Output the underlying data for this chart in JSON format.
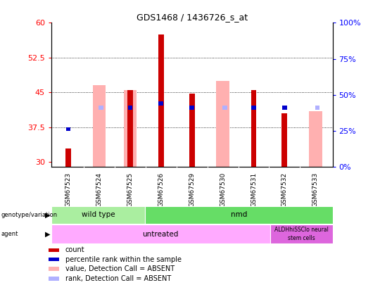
{
  "title": "GDS1468 / 1436726_s_at",
  "samples": [
    "GSM67523",
    "GSM67524",
    "GSM67525",
    "GSM67526",
    "GSM67529",
    "GSM67530",
    "GSM67531",
    "GSM67532",
    "GSM67533"
  ],
  "count": [
    33.0,
    null,
    45.5,
    57.5,
    44.8,
    null,
    45.5,
    40.5,
    null
  ],
  "percentile_rank_pct": [
    26,
    null,
    41,
    44,
    41,
    null,
    41,
    41,
    null
  ],
  "value_absent": [
    null,
    46.5,
    45.5,
    null,
    null,
    47.5,
    null,
    null,
    41.0
  ],
  "rank_absent_pct": [
    null,
    41,
    null,
    null,
    null,
    41,
    null,
    null,
    41
  ],
  "ylim_left": [
    29,
    60
  ],
  "ylim_right": [
    0,
    100
  ],
  "yticks_left": [
    30,
    37.5,
    45,
    52.5,
    60
  ],
  "yticks_right": [
    0,
    25,
    50,
    75,
    100
  ],
  "count_color": "#cc0000",
  "percentile_color": "#0000cc",
  "value_absent_color": "#ffb0b0",
  "rank_absent_color": "#b0b0ff",
  "genotype_wt_color": "#aaeea0",
  "genotype_nmd_color": "#66dd66",
  "agent_untreated_color": "#ffaaff",
  "agent_aldhhi_color": "#dd66dd",
  "wt_count": 3,
  "nmd_count": 6,
  "untreated_count": 7,
  "aldhhi_count": 2
}
